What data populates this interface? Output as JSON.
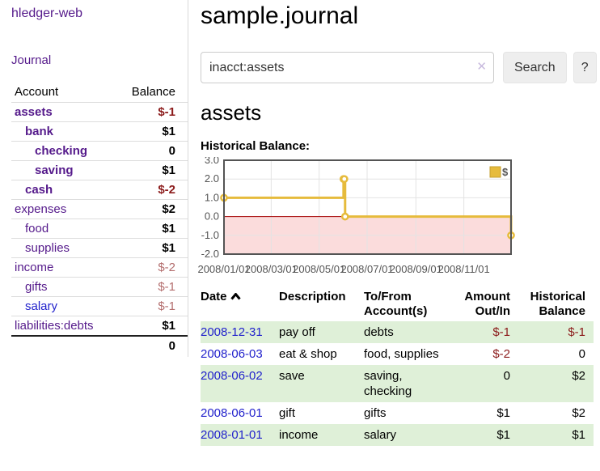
{
  "app": {
    "brand": "hledger-web"
  },
  "sidebar": {
    "journal_label": "Journal",
    "account_header": "Account",
    "balance_header": "Balance",
    "rows": [
      {
        "account": "assets",
        "balance": "$-1"
      },
      {
        "account": "bank",
        "balance": "$1"
      },
      {
        "account": "checking",
        "balance": "0"
      },
      {
        "account": "saving",
        "balance": "$1"
      },
      {
        "account": "cash",
        "balance": "$-2"
      },
      {
        "account": "expenses",
        "balance": "$2"
      },
      {
        "account": "food",
        "balance": "$1"
      },
      {
        "account": "supplies",
        "balance": "$1"
      },
      {
        "account": "income",
        "balance": "$-2"
      },
      {
        "account": "gifts",
        "balance": "$-1"
      },
      {
        "account": "salary",
        "balance": "$-1"
      },
      {
        "account": "liabilities:debts",
        "balance": "$1"
      }
    ],
    "total": "0"
  },
  "main": {
    "title": "sample.journal",
    "search": {
      "value": "inacct:assets",
      "clear_icon": "✕",
      "button_label": "Search",
      "help_label": "?"
    },
    "account_heading": "assets",
    "chart_title": "Historical Balance:"
  },
  "chart_data": {
    "type": "line",
    "title": "Historical Balance",
    "style": "step",
    "series": [
      {
        "name": "$",
        "color": "#e6bb3c",
        "points": [
          [
            "2008-01-01",
            1
          ],
          [
            "2008-06-01",
            2
          ],
          [
            "2008-06-02",
            2
          ],
          [
            "2008-06-03",
            0
          ],
          [
            "2008-12-31",
            -1
          ]
        ]
      }
    ],
    "x_range": [
      "2008-01-01",
      "2008-12-31"
    ],
    "ylim": [
      -2,
      3
    ],
    "y_ticks": [
      "3.0",
      "2.0",
      "1.0",
      "0.0",
      "-1.0",
      "-2.0"
    ],
    "x_ticks": [
      {
        "date": "2008-01-01",
        "label": "2008/01/01"
      },
      {
        "date": "2008-03-01",
        "label": "2008/03/01"
      },
      {
        "date": "2008-05-01",
        "label": "2008/05/01"
      },
      {
        "date": "2008-07-01",
        "label": "2008/07/01"
      },
      {
        "date": "2008-09-01",
        "label": "2008/09/01"
      },
      {
        "date": "2008-11-01",
        "label": "2008/11/01"
      }
    ],
    "legend": {
      "label": "$",
      "position": "top-right"
    },
    "grid": true,
    "negative_region_color": "#fbdcdc",
    "zero_line_color": "#a40000"
  },
  "register": {
    "headers": {
      "date": "Date",
      "description": "Description",
      "accounts": "To/From Account(s)",
      "amount": "Amount Out/In",
      "balance": "Historical Balance"
    },
    "rows": [
      {
        "date": "2008-12-31",
        "description": "pay off",
        "accounts": "debts",
        "amount": "$-1",
        "balance": "$-1"
      },
      {
        "date": "2008-06-03",
        "description": "eat & shop",
        "accounts": "food, supplies",
        "amount": "$-2",
        "balance": "0"
      },
      {
        "date": "2008-06-02",
        "description": "save",
        "accounts": "saving, checking",
        "amount": "0",
        "balance": "$2"
      },
      {
        "date": "2008-06-01",
        "description": "gift",
        "accounts": "gifts",
        "amount": "$1",
        "balance": "$2"
      },
      {
        "date": "2008-01-01",
        "description": "income",
        "accounts": "salary",
        "amount": "$1",
        "balance": "$1"
      }
    ]
  },
  "colors": {
    "accent_purple": "#551a8b",
    "link_blue": "#2222cc",
    "negative_strong": "#8b1a1a",
    "negative_soft": "#b36d6d",
    "row_green": "#dff0d8",
    "chart_line": "#e6bb3c"
  }
}
